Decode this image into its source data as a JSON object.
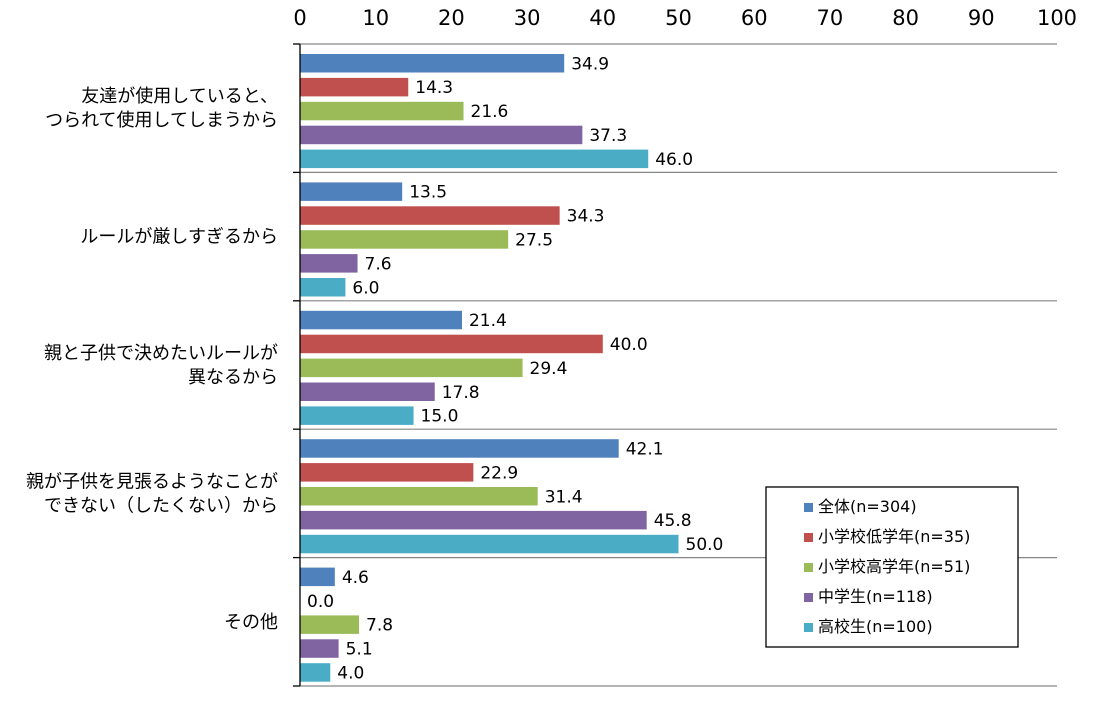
{
  "chart_data": {
    "type": "bar",
    "orientation": "horizontal",
    "xlim": [
      0,
      100
    ],
    "x_ticks": [
      "0",
      "10",
      "20",
      "30",
      "40",
      "50",
      "60",
      "70",
      "80",
      "90",
      "100"
    ],
    "x_tick_values": [
      0,
      10,
      20,
      30,
      40,
      50,
      60,
      70,
      80,
      90,
      100
    ],
    "x_axis_position": "top",
    "grid": false,
    "legend_position": "bottom-right",
    "categories": [
      [
        "友達が使用していると、",
        "つられて使用してしまうから"
      ],
      [
        "ルールが厳しすぎるから"
      ],
      [
        "親と子供で決めたいルールが",
        "異なるから"
      ],
      [
        "親が子供を見張るようなことが",
        "できない（したくない）から"
      ],
      [
        "その他"
      ]
    ],
    "series": [
      {
        "name": "全体(n=304)",
        "color": "#4f81bd",
        "values": [
          34.9,
          13.5,
          21.4,
          42.1,
          4.6
        ],
        "labels": [
          "34.9",
          "13.5",
          "21.4",
          "42.1",
          "4.6"
        ]
      },
      {
        "name": "小学校低学年(n=35)",
        "color": "#c0504d",
        "values": [
          14.3,
          34.3,
          40.0,
          22.9,
          0.0
        ],
        "labels": [
          "14.3",
          "34.3",
          "40.0",
          "22.9",
          "0.0"
        ]
      },
      {
        "name": "小学校高学年(n=51)",
        "color": "#9bbb59",
        "values": [
          21.6,
          27.5,
          29.4,
          31.4,
          7.8
        ],
        "labels": [
          "21.6",
          "27.5",
          "29.4",
          "31.4",
          "7.8"
        ]
      },
      {
        "name": "中学生(n=118)",
        "color": "#8064a2",
        "values": [
          37.3,
          7.6,
          17.8,
          45.8,
          5.1
        ],
        "labels": [
          "37.3",
          "7.6",
          "17.8",
          "45.8",
          "5.1"
        ]
      },
      {
        "name": "高校生(n=100)",
        "color": "#4bacc6",
        "values": [
          46.0,
          6.0,
          15.0,
          50.0,
          4.0
        ],
        "labels": [
          "46.0",
          "6.0",
          "15.0",
          "50.0",
          "4.0"
        ]
      }
    ]
  }
}
